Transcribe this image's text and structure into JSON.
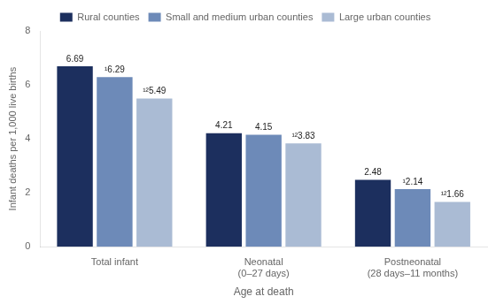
{
  "chart_data": {
    "type": "bar",
    "categories": [
      "Total infant",
      "Neonatal\n(0–27 days)",
      "Postneonatal\n(28 days–11 months)"
    ],
    "series": [
      {
        "name": "Rural counties",
        "color": "#1c2f5e",
        "values": [
          6.69,
          4.21,
          2.48
        ]
      },
      {
        "name": "Small and medium urban counties",
        "color": "#6d8ab8",
        "values": [
          6.29,
          4.15,
          2.14
        ],
        "value_labels": [
          "¹6.29",
          "4.15",
          "¹2.14"
        ]
      },
      {
        "name": "Large urban counties",
        "color": "#aabbd4",
        "values": [
          5.49,
          3.83,
          1.66
        ],
        "value_labels": [
          "¹²5.49",
          "¹²3.83",
          "¹²1.66"
        ]
      }
    ],
    "xlabel": "Age at death",
    "ylabel": "Infant deaths per 1,000 live births",
    "ylim": [
      0,
      8
    ],
    "yticks": [
      0,
      2,
      4,
      6,
      8
    ],
    "grid": false,
    "legend": "top",
    "data_labels": true
  }
}
